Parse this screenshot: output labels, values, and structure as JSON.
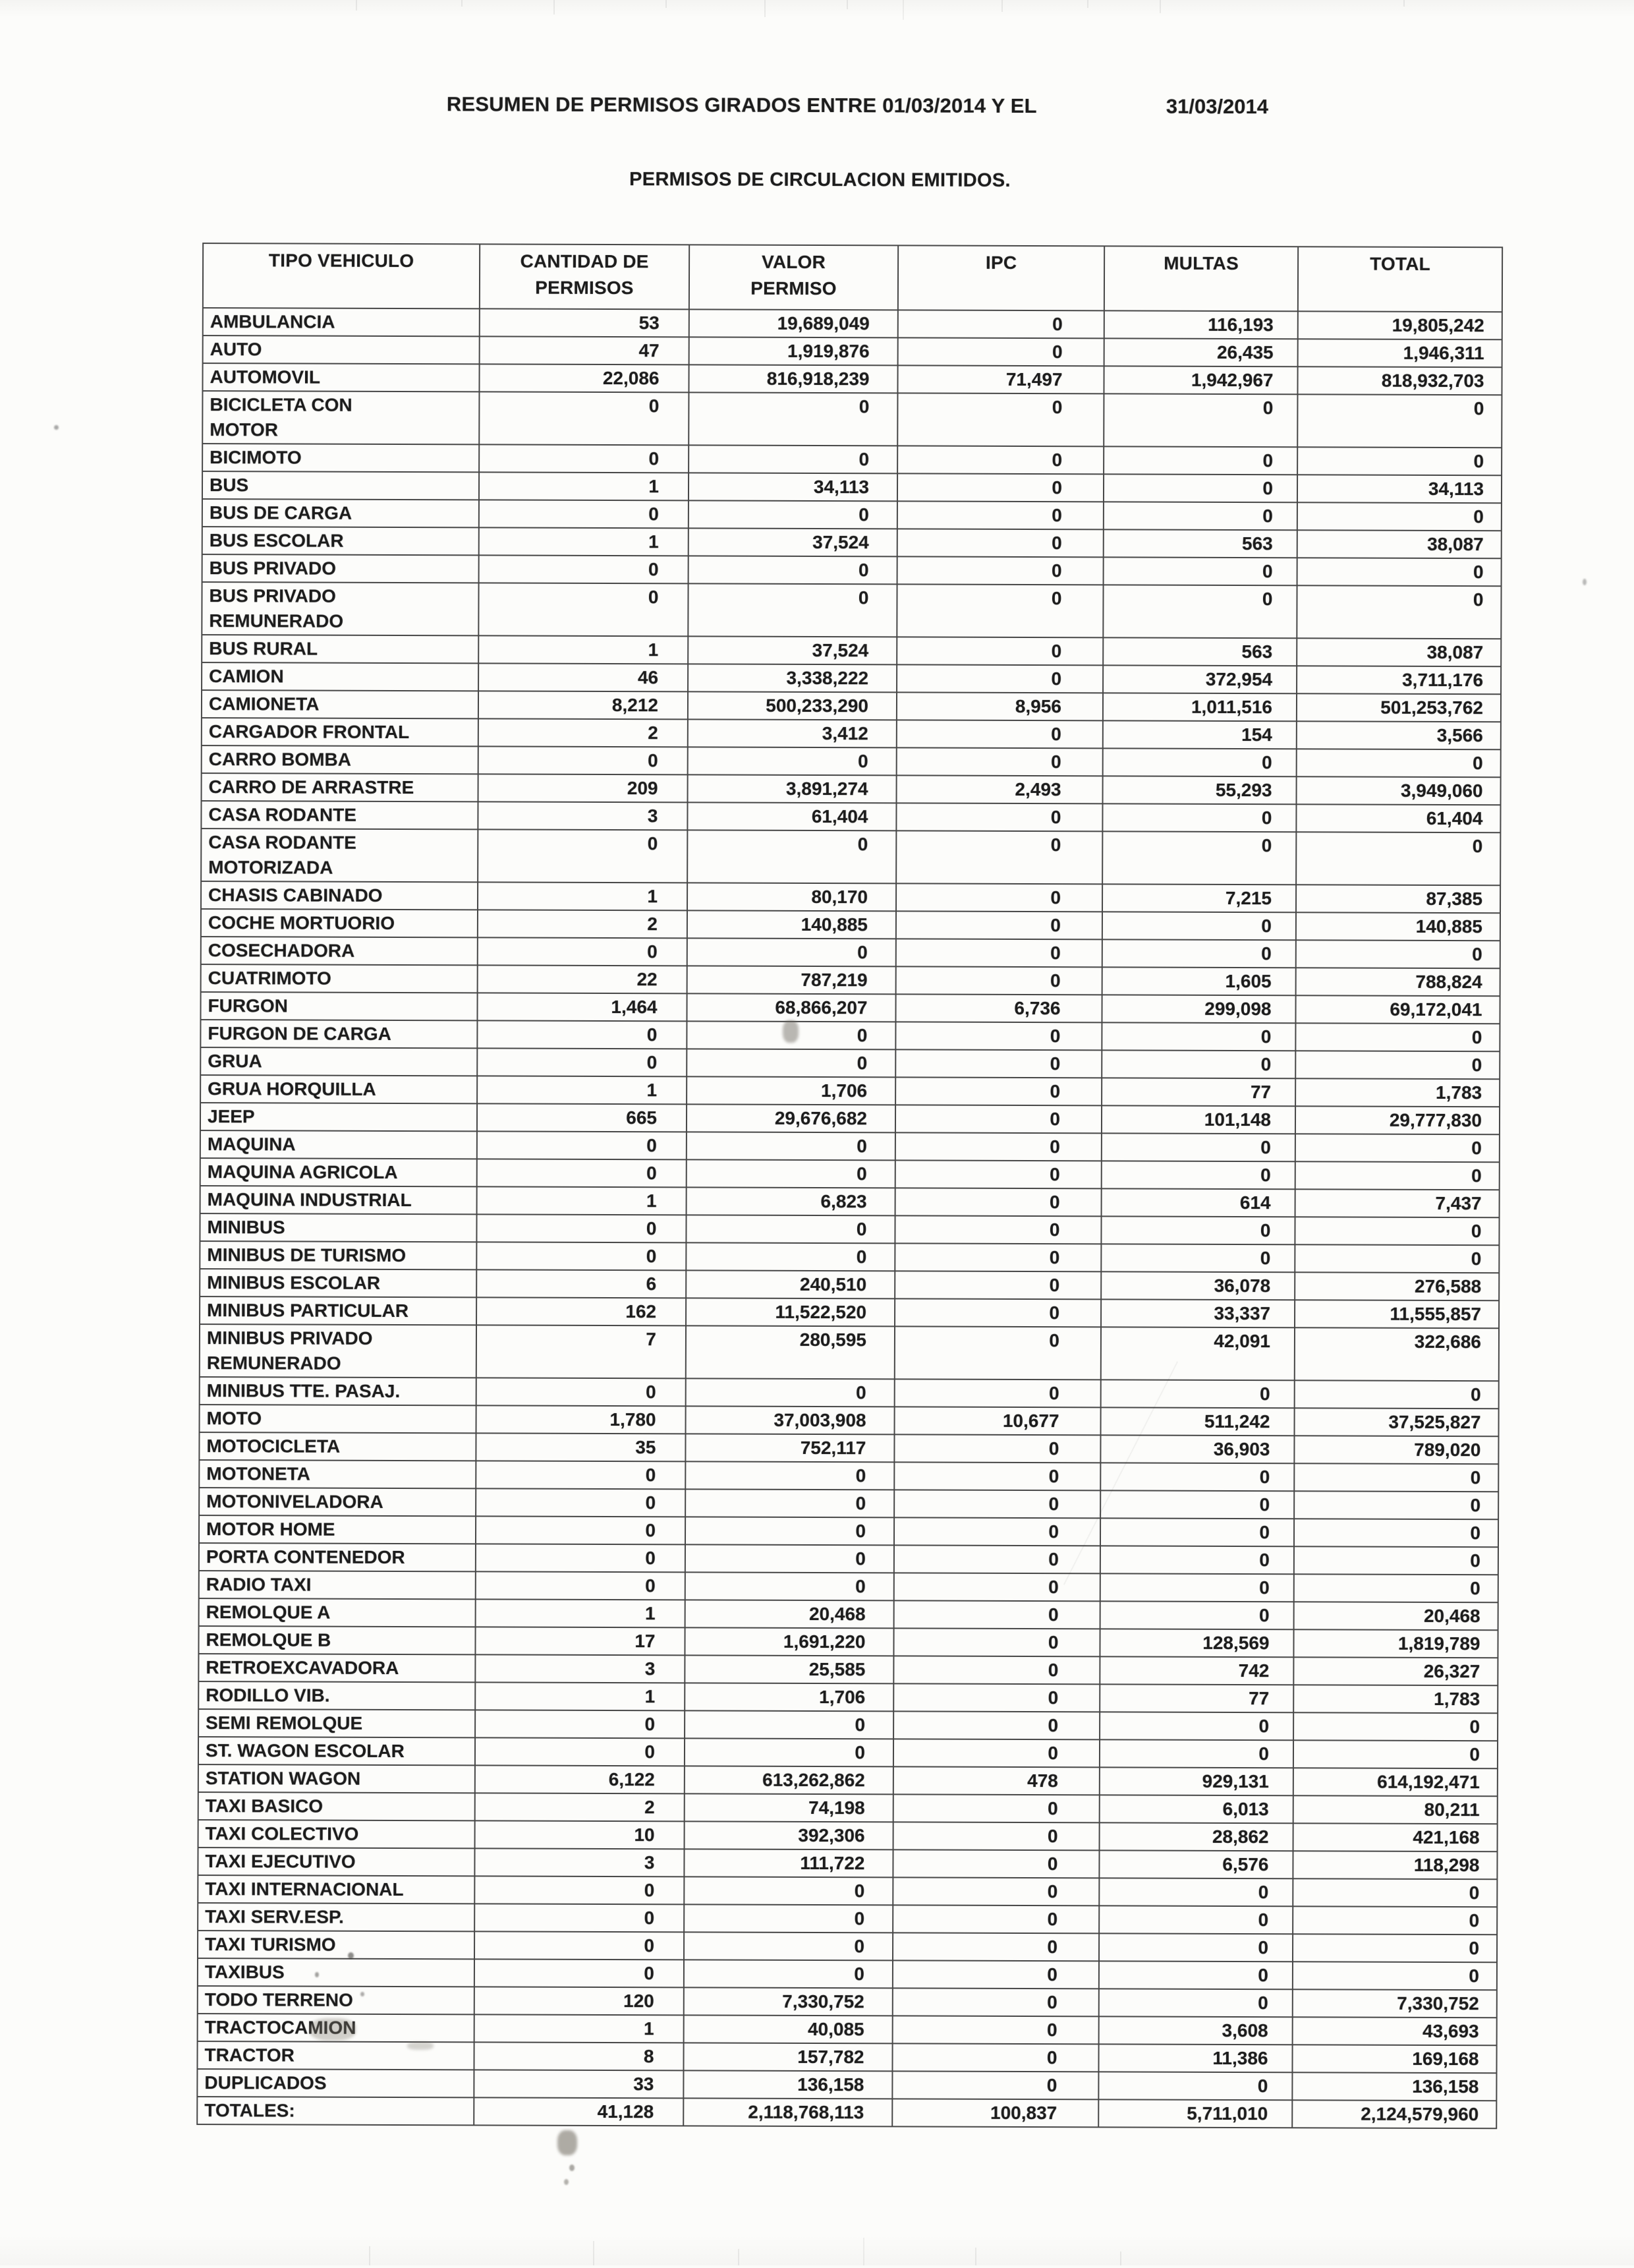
{
  "doc": {
    "title": "RESUMEN DE PERMISOS GIRADOS ENTRE 01/03/2014 Y EL",
    "title_date": "31/03/2014",
    "subtitle": "PERMISOS DE CIRCULACION EMITIDOS."
  },
  "table": {
    "headers": [
      "TIPO VEHICULO",
      "CANTIDAD DE\nPERMISOS",
      "VALOR\nPERMISO",
      "IPC",
      "MULTAS",
      "TOTAL"
    ],
    "rows": [
      [
        "AMBULANCIA",
        "53",
        "19,689,049",
        "0",
        "116,193",
        "19,805,242"
      ],
      [
        "AUTO",
        "47",
        "1,919,876",
        "0",
        "26,435",
        "1,946,311"
      ],
      [
        "AUTOMOVIL",
        "22,086",
        "816,918,239",
        "71,497",
        "1,942,967",
        "818,932,703"
      ],
      [
        "BICICLETA CON\nMOTOR",
        "0",
        "0",
        "0",
        "0",
        "0"
      ],
      [
        "BICIMOTO",
        "0",
        "0",
        "0",
        "0",
        "0"
      ],
      [
        "BUS",
        "1",
        "34,113",
        "0",
        "0",
        "34,113"
      ],
      [
        "BUS DE CARGA",
        "0",
        "0",
        "0",
        "0",
        "0"
      ],
      [
        "BUS ESCOLAR",
        "1",
        "37,524",
        "0",
        "563",
        "38,087"
      ],
      [
        "BUS PRIVADO",
        "0",
        "0",
        "0",
        "0",
        "0"
      ],
      [
        "BUS PRIVADO\nREMUNERADO",
        "0",
        "0",
        "0",
        "0",
        "0"
      ],
      [
        "BUS RURAL",
        "1",
        "37,524",
        "0",
        "563",
        "38,087"
      ],
      [
        "CAMION",
        "46",
        "3,338,222",
        "0",
        "372,954",
        "3,711,176"
      ],
      [
        "CAMIONETA",
        "8,212",
        "500,233,290",
        "8,956",
        "1,011,516",
        "501,253,762"
      ],
      [
        "CARGADOR FRONTAL",
        "2",
        "3,412",
        "0",
        "154",
        "3,566"
      ],
      [
        "CARRO BOMBA",
        "0",
        "0",
        "0",
        "0",
        "0"
      ],
      [
        "CARRO DE ARRASTRE",
        "209",
        "3,891,274",
        "2,493",
        "55,293",
        "3,949,060"
      ],
      [
        "CASA RODANTE",
        "3",
        "61,404",
        "0",
        "0",
        "61,404"
      ],
      [
        "CASA RODANTE\nMOTORIZADA",
        "0",
        "0",
        "0",
        "0",
        "0"
      ],
      [
        "CHASIS CABINADO",
        "1",
        "80,170",
        "0",
        "7,215",
        "87,385"
      ],
      [
        "COCHE MORTUORIO",
        "2",
        "140,885",
        "0",
        "0",
        "140,885"
      ],
      [
        "COSECHADORA",
        "0",
        "0",
        "0",
        "0",
        "0"
      ],
      [
        "CUATRIMOTO",
        "22",
        "787,219",
        "0",
        "1,605",
        "788,824"
      ],
      [
        "FURGON",
        "1,464",
        "68,866,207",
        "6,736",
        "299,098",
        "69,172,041"
      ],
      [
        "FURGON DE CARGA",
        "0",
        "0",
        "0",
        "0",
        "0"
      ],
      [
        "GRUA",
        "0",
        "0",
        "0",
        "0",
        "0"
      ],
      [
        "GRUA HORQUILLA",
        "1",
        "1,706",
        "0",
        "77",
        "1,783"
      ],
      [
        "JEEP",
        "665",
        "29,676,682",
        "0",
        "101,148",
        "29,777,830"
      ],
      [
        "MAQUINA",
        "0",
        "0",
        "0",
        "0",
        "0"
      ],
      [
        "MAQUINA AGRICOLA",
        "0",
        "0",
        "0",
        "0",
        "0"
      ],
      [
        "MAQUINA INDUSTRIAL",
        "1",
        "6,823",
        "0",
        "614",
        "7,437"
      ],
      [
        "MINIBUS",
        "0",
        "0",
        "0",
        "0",
        "0"
      ],
      [
        "MINIBUS DE TURISMO",
        "0",
        "0",
        "0",
        "0",
        "0"
      ],
      [
        "MINIBUS ESCOLAR",
        "6",
        "240,510",
        "0",
        "36,078",
        "276,588"
      ],
      [
        "MINIBUS PARTICULAR",
        "162",
        "11,522,520",
        "0",
        "33,337",
        "11,555,857"
      ],
      [
        "MINIBUS PRIVADO\nREMUNERADO",
        "7",
        "280,595",
        "0",
        "42,091",
        "322,686"
      ],
      [
        "MINIBUS TTE. PASAJ.",
        "0",
        "0",
        "0",
        "0",
        "0"
      ],
      [
        "MOTO",
        "1,780",
        "37,003,908",
        "10,677",
        "511,242",
        "37,525,827"
      ],
      [
        "MOTOCICLETA",
        "35",
        "752,117",
        "0",
        "36,903",
        "789,020"
      ],
      [
        "MOTONETA",
        "0",
        "0",
        "0",
        "0",
        "0"
      ],
      [
        "MOTONIVELADORA",
        "0",
        "0",
        "0",
        "0",
        "0"
      ],
      [
        "MOTOR HOME",
        "0",
        "0",
        "0",
        "0",
        "0"
      ],
      [
        "PORTA CONTENEDOR",
        "0",
        "0",
        "0",
        "0",
        "0"
      ],
      [
        "RADIO TAXI",
        "0",
        "0",
        "0",
        "0",
        "0"
      ],
      [
        "REMOLQUE A",
        "1",
        "20,468",
        "0",
        "0",
        "20,468"
      ],
      [
        "REMOLQUE B",
        "17",
        "1,691,220",
        "0",
        "128,569",
        "1,819,789"
      ],
      [
        "RETROEXCAVADORA",
        "3",
        "25,585",
        "0",
        "742",
        "26,327"
      ],
      [
        "RODILLO VIB.",
        "1",
        "1,706",
        "0",
        "77",
        "1,783"
      ],
      [
        "SEMI REMOLQUE",
        "0",
        "0",
        "0",
        "0",
        "0"
      ],
      [
        "ST. WAGON ESCOLAR",
        "0",
        "0",
        "0",
        "0",
        "0"
      ],
      [
        "STATION WAGON",
        "6,122",
        "613,262,862",
        "478",
        "929,131",
        "614,192,471"
      ],
      [
        "TAXI BASICO",
        "2",
        "74,198",
        "0",
        "6,013",
        "80,211"
      ],
      [
        "TAXI COLECTIVO",
        "10",
        "392,306",
        "0",
        "28,862",
        "421,168"
      ],
      [
        "TAXI EJECUTIVO",
        "3",
        "111,722",
        "0",
        "6,576",
        "118,298"
      ],
      [
        "TAXI INTERNACIONAL",
        "0",
        "0",
        "0",
        "0",
        "0"
      ],
      [
        "TAXI SERV.ESP.",
        "0",
        "0",
        "0",
        "0",
        "0"
      ],
      [
        "TAXI TURISMO",
        "0",
        "0",
        "0",
        "0",
        "0"
      ],
      [
        "TAXIBUS",
        "0",
        "0",
        "0",
        "0",
        "0"
      ],
      [
        "TODO TERRENO",
        "120",
        "7,330,752",
        "0",
        "0",
        "7,330,752"
      ],
      [
        "TRACTOCAMION",
        "1",
        "40,085",
        "0",
        "3,608",
        "43,693"
      ],
      [
        "TRACTOR",
        "8",
        "157,782",
        "0",
        "11,386",
        "169,168"
      ],
      [
        "DUPLICADOS",
        "33",
        "136,158",
        "0",
        "0",
        "136,158"
      ],
      [
        "TOTALES:",
        "41,128",
        "2,118,768,113",
        "100,837",
        "5,711,010",
        "2,124,579,960"
      ]
    ]
  }
}
